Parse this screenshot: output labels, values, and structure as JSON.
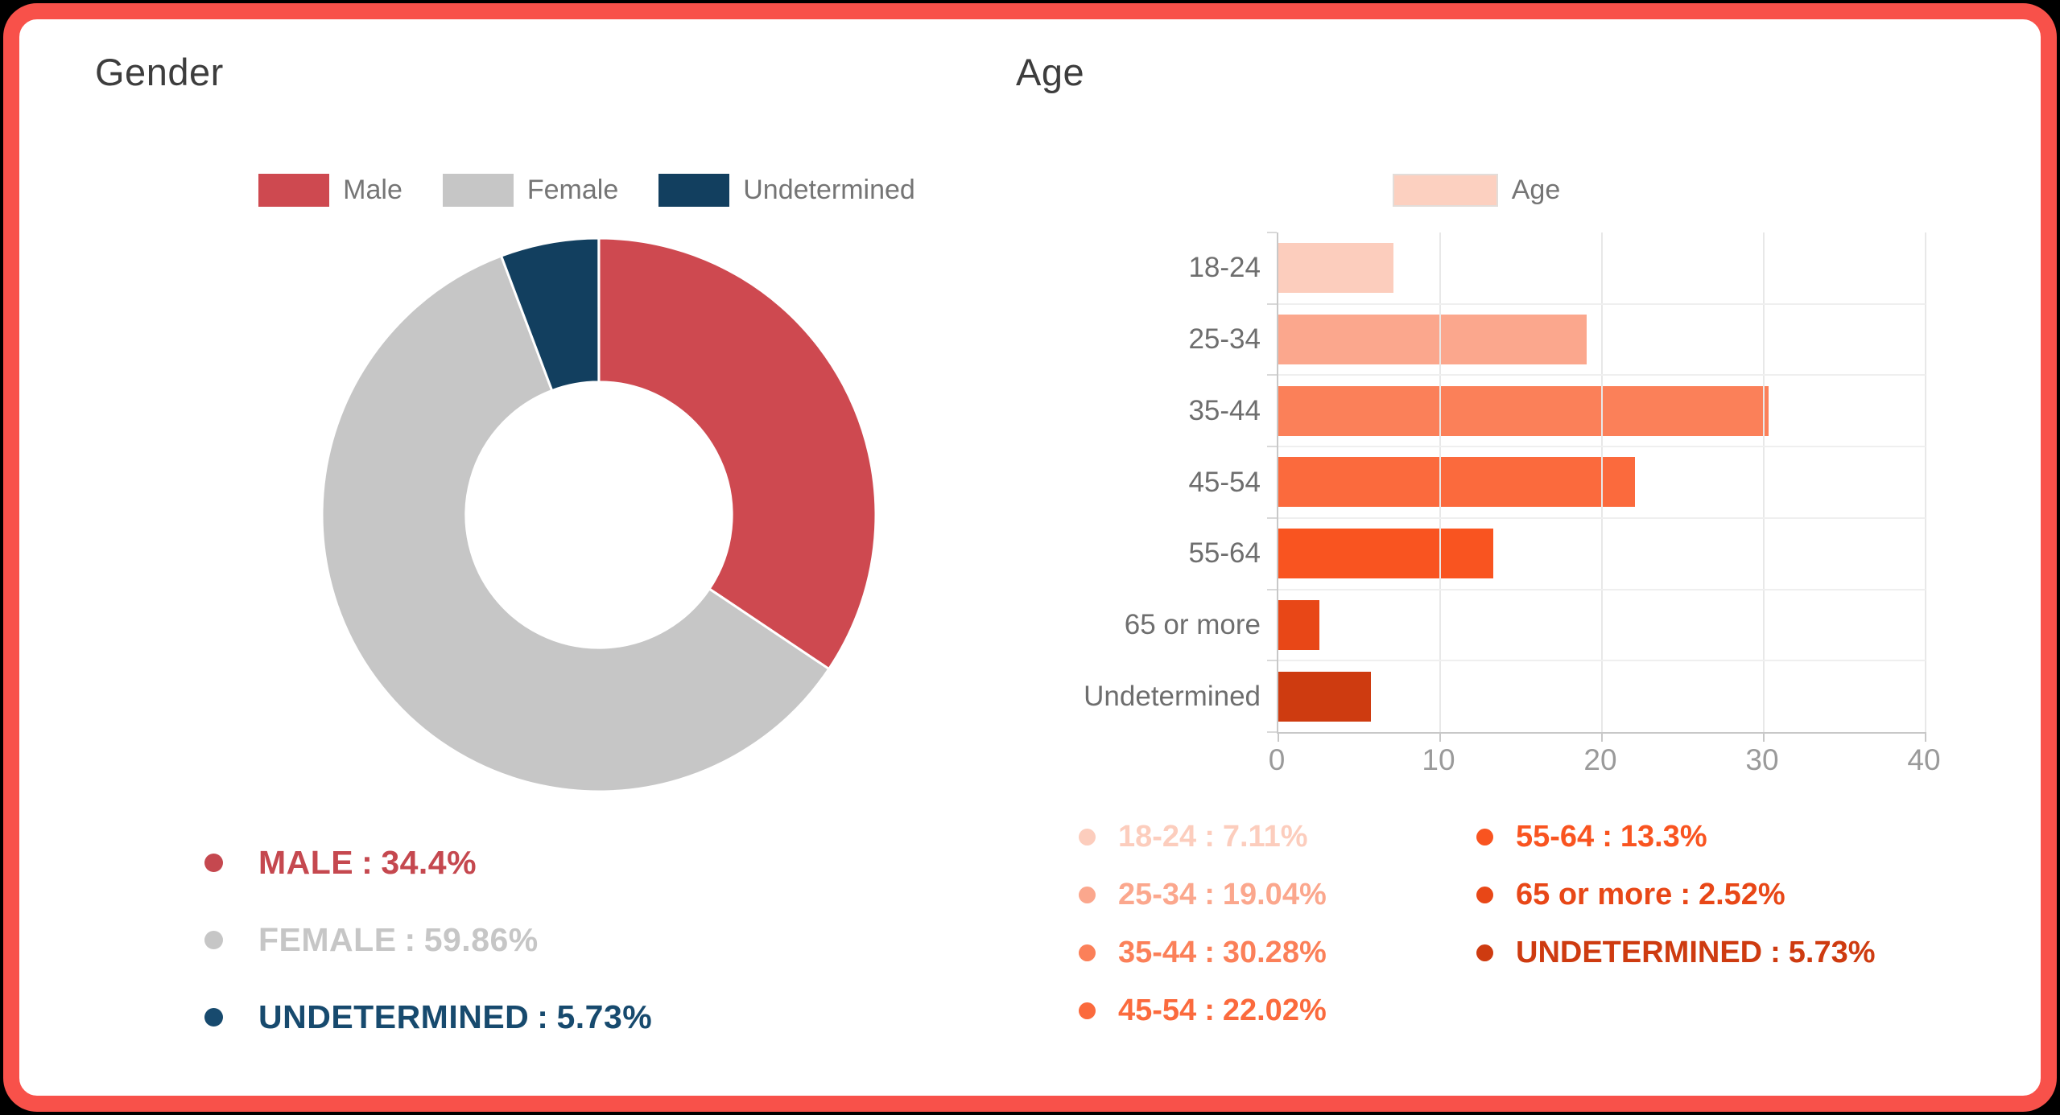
{
  "frame": {
    "border_color": "#f8514a",
    "background": "#ffffff"
  },
  "strings": {
    "colon": ":"
  },
  "gender": {
    "title": "Gender",
    "stats": [
      {
        "label": "MALE",
        "value": "34.4%",
        "color": "#c5484f"
      },
      {
        "label": "FEMALE",
        "value": "59.86%",
        "color": "#c6c6c6"
      },
      {
        "label": "UNDETERMINED",
        "value": "5.73%",
        "color": "#174a6e"
      }
    ]
  },
  "age": {
    "title": "Age",
    "legend_label": "Age",
    "legend_color": "#fcd0c0",
    "stats_col1": [
      {
        "label": "18-24",
        "value": "7.11%",
        "color": "#fccdbd"
      },
      {
        "label": "25-34",
        "value": "19.04%",
        "color": "#fba78d"
      },
      {
        "label": "35-44",
        "value": "30.28%",
        "color": "#fb8059"
      },
      {
        "label": "45-54",
        "value": "22.02%",
        "color": "#fb6a3d"
      }
    ],
    "stats_col2": [
      {
        "label": "55-64",
        "value": "13.3%",
        "color": "#f95420"
      },
      {
        "label": "65 or more",
        "value": "2.52%",
        "color": "#e84717"
      },
      {
        "label": "UNDETERMINED",
        "value": "5.73%",
        "color": "#ce3b10"
      }
    ]
  },
  "chart_data": [
    {
      "type": "pie",
      "subtype": "donut",
      "title": "Gender",
      "labels": [
        "Male",
        "Female",
        "Undetermined"
      ],
      "values": [
        34.4,
        59.86,
        5.73
      ],
      "unit": "%",
      "colors": [
        "#ce4950",
        "#c6c6c6",
        "#123f5f"
      ],
      "start_angle_deg": -90,
      "direction": "clockwise",
      "inner_radius_ratio": 0.48,
      "legend_position": "top"
    },
    {
      "type": "bar",
      "orientation": "horizontal",
      "title": "Age",
      "categories": [
        "18-24",
        "25-34",
        "35-44",
        "45-54",
        "55-64",
        "65 or more",
        "Undetermined"
      ],
      "values": [
        7.11,
        19.04,
        30.28,
        22.02,
        13.3,
        2.52,
        5.73
      ],
      "unit": "%",
      "colors": [
        "#fccdbd",
        "#fba78d",
        "#fb8059",
        "#fb6a3d",
        "#f95420",
        "#e84717",
        "#ce3b10"
      ],
      "xlim": [
        0,
        40
      ],
      "ticks": [
        0,
        10,
        20,
        30,
        40
      ],
      "grid": true,
      "legend_position": "top"
    }
  ]
}
